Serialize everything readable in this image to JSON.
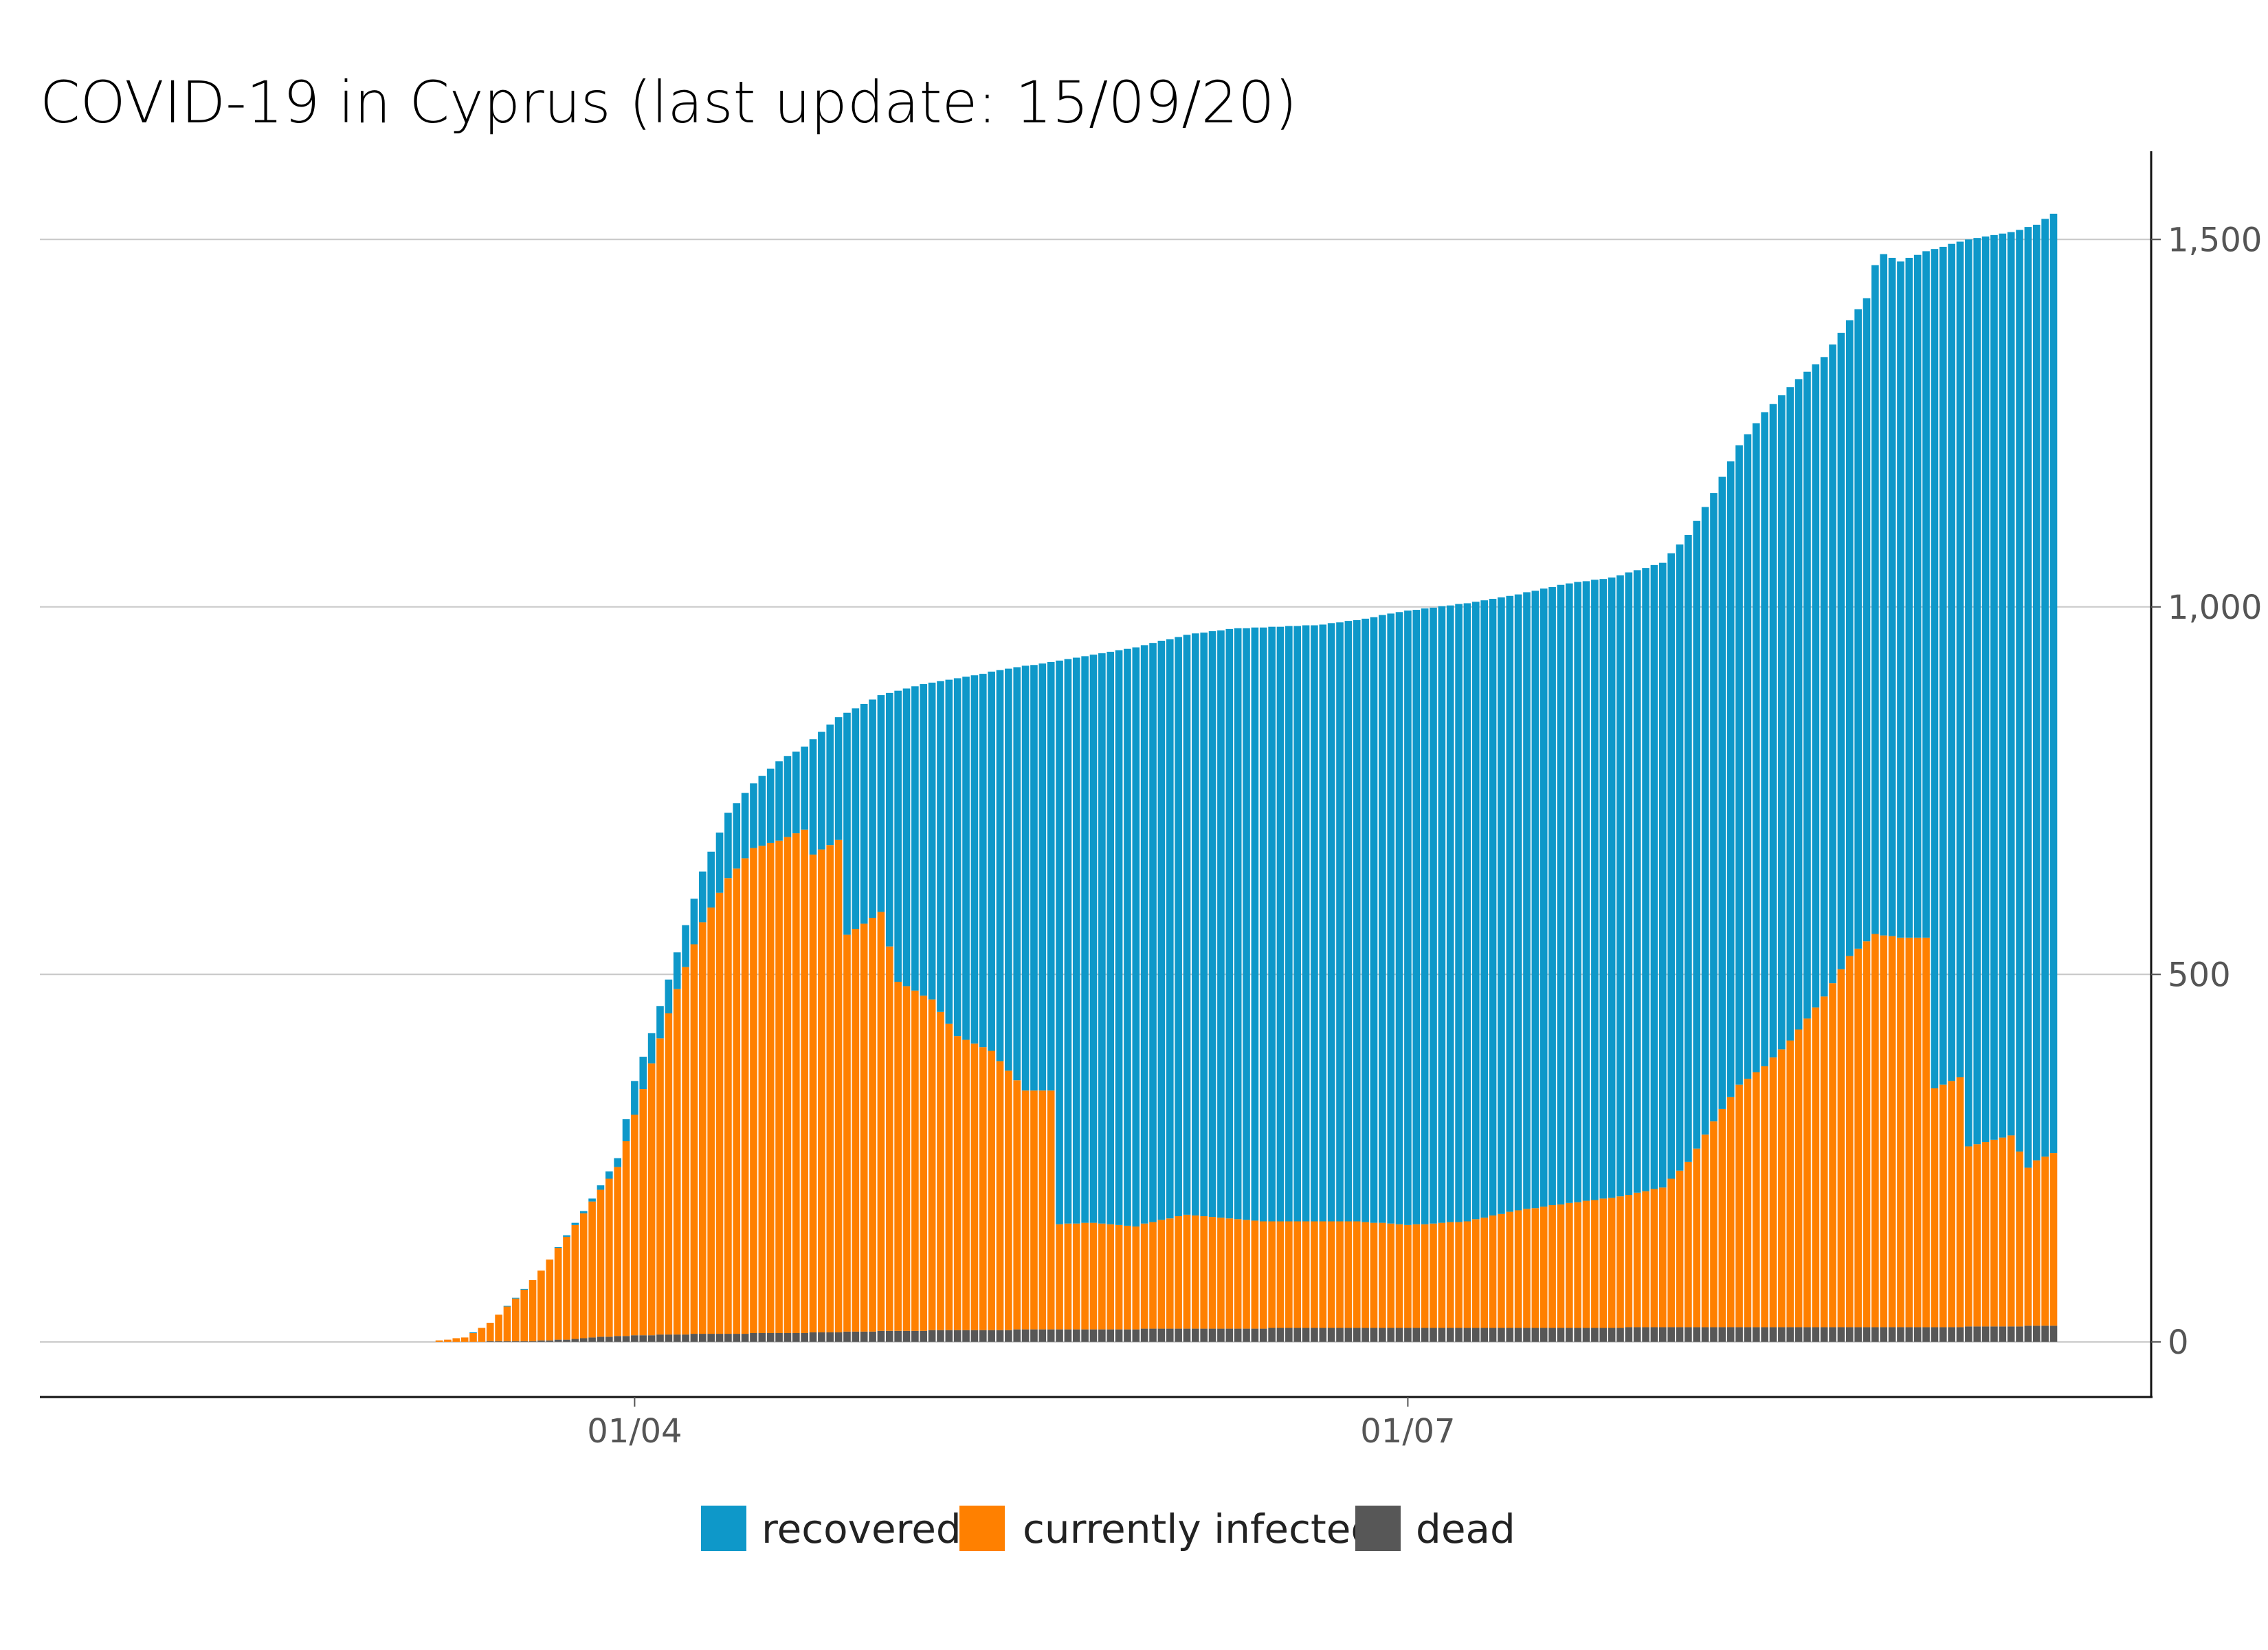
{
  "chart_data": {
    "type": "bar",
    "stacked": true,
    "title": "COVID-19 in Cyprus (last update: 15/09/20)",
    "xlabel": "",
    "ylabel": "",
    "x_start": "2020-01-22",
    "x_end": "2020-09-15",
    "x_tick_labels": [
      {
        "date": "2020-04-01",
        "label": "01/04"
      },
      {
        "date": "2020-07-01",
        "label": "01/07"
      }
    ],
    "y_axis_position": "right",
    "ylim": [
      -75,
      1620
    ],
    "y_ticks": [
      {
        "value": 0,
        "label": "0"
      },
      {
        "value": 500,
        "label": "500"
      },
      {
        "value": 1000,
        "label": "1,000"
      },
      {
        "value": 1500,
        "label": "1,500"
      }
    ],
    "grid": "horizontal",
    "legend_position": "bottom-center",
    "colors": {
      "recovered": "#0e98c9",
      "infected": "#ff8000",
      "dead": "#575757"
    },
    "series": [
      {
        "key": "recovered",
        "name": "recovered"
      },
      {
        "key": "infected",
        "name": "currently infected"
      },
      {
        "key": "dead",
        "name": "dead"
      }
    ],
    "daily_from": "2020-03-09",
    "daily_to": "2020-09-15",
    "anchor_points": {
      "dead": [
        [
          "2020-03-09",
          0
        ],
        [
          "2020-03-20",
          1
        ],
        [
          "2020-03-24",
          3
        ],
        [
          "2020-03-27",
          6
        ],
        [
          "2020-04-01",
          9
        ],
        [
          "2020-04-10",
          11
        ],
        [
          "2020-04-20",
          12
        ],
        [
          "2020-05-01",
          15
        ],
        [
          "2020-05-20",
          17
        ],
        [
          "2020-06-10",
          18
        ],
        [
          "2020-06-20",
          19
        ],
        [
          "2020-09-01",
          20
        ],
        [
          "2020-09-15",
          22
        ]
      ],
      "infected": [
        [
          "2020-03-09",
          2
        ],
        [
          "2020-03-12",
          6
        ],
        [
          "2020-03-15",
          25
        ],
        [
          "2020-03-18",
          58
        ],
        [
          "2020-03-21",
          95
        ],
        [
          "2020-03-24",
          140
        ],
        [
          "2020-03-27",
          185
        ],
        [
          "2020-03-30",
          230
        ],
        [
          "2020-04-01",
          300
        ],
        [
          "2020-04-03",
          370
        ],
        [
          "2020-04-06",
          470
        ],
        [
          "2020-04-09",
          560
        ],
        [
          "2020-04-12",
          620
        ],
        [
          "2020-04-15",
          660
        ],
        [
          "2020-04-18",
          670
        ],
        [
          "2020-04-21",
          685
        ],
        [
          "2020-04-22",
          650
        ],
        [
          "2020-04-25",
          670
        ],
        [
          "2020-04-26",
          540
        ],
        [
          "2020-04-30",
          570
        ],
        [
          "2020-05-02",
          475
        ],
        [
          "2020-05-06",
          450
        ],
        [
          "2020-05-09",
          400
        ],
        [
          "2020-05-13",
          380
        ],
        [
          "2020-05-17",
          325
        ],
        [
          "2020-05-20",
          325
        ],
        [
          "2020-05-21",
          143
        ],
        [
          "2020-05-25",
          145
        ],
        [
          "2020-05-30",
          140
        ],
        [
          "2020-06-05",
          155
        ],
        [
          "2020-06-10",
          150
        ],
        [
          "2020-06-15",
          145
        ],
        [
          "2020-06-25",
          145
        ],
        [
          "2020-07-01",
          140
        ],
        [
          "2020-07-08",
          145
        ],
        [
          "2020-07-14",
          160
        ],
        [
          "2020-07-20",
          170
        ],
        [
          "2020-07-27",
          180
        ],
        [
          "2020-07-31",
          190
        ],
        [
          "2020-08-03",
          225
        ],
        [
          "2020-08-06",
          280
        ],
        [
          "2020-08-09",
          330
        ],
        [
          "2020-08-12",
          355
        ],
        [
          "2020-08-15",
          390
        ],
        [
          "2020-08-19",
          450
        ],
        [
          "2020-08-22",
          505
        ],
        [
          "2020-08-25",
          535
        ],
        [
          "2020-08-28",
          530
        ],
        [
          "2020-08-31",
          530
        ],
        [
          "2020-09-01",
          325
        ],
        [
          "2020-09-04",
          340
        ],
        [
          "2020-09-05",
          245
        ],
        [
          "2020-09-10",
          260
        ],
        [
          "2020-09-12",
          215
        ],
        [
          "2020-09-13",
          225
        ],
        [
          "2020-09-15",
          235
        ]
      ],
      "total": [
        [
          "2020-03-09",
          2
        ],
        [
          "2020-03-12",
          6
        ],
        [
          "2020-03-15",
          26
        ],
        [
          "2020-03-18",
          60
        ],
        [
          "2020-03-21",
          96
        ],
        [
          "2020-03-24",
          145
        ],
        [
          "2020-03-27",
          195
        ],
        [
          "2020-03-30",
          250
        ],
        [
          "2020-04-01",
          355
        ],
        [
          "2020-04-03",
          420
        ],
        [
          "2020-04-06",
          530
        ],
        [
          "2020-04-09",
          640
        ],
        [
          "2020-04-12",
          720
        ],
        [
          "2020-04-15",
          760
        ],
        [
          "2020-04-18",
          790
        ],
        [
          "2020-04-21",
          810
        ],
        [
          "2020-04-25",
          850
        ],
        [
          "2020-04-30",
          880
        ],
        [
          "2020-05-05",
          895
        ],
        [
          "2020-05-10",
          905
        ],
        [
          "2020-05-15",
          916
        ],
        [
          "2020-05-20",
          925
        ],
        [
          "2020-05-25",
          935
        ],
        [
          "2020-05-30",
          945
        ],
        [
          "2020-06-05",
          962
        ],
        [
          "2020-06-10",
          970
        ],
        [
          "2020-06-20",
          975
        ],
        [
          "2020-06-25",
          982
        ],
        [
          "2020-07-01",
          995
        ],
        [
          "2020-07-08",
          1005
        ],
        [
          "2020-07-14",
          1017
        ],
        [
          "2020-07-20",
          1032
        ],
        [
          "2020-07-25",
          1040
        ],
        [
          "2020-07-31",
          1060
        ],
        [
          "2020-08-03",
          1098
        ],
        [
          "2020-08-06",
          1155
        ],
        [
          "2020-08-09",
          1220
        ],
        [
          "2020-08-12",
          1265
        ],
        [
          "2020-08-16",
          1310
        ],
        [
          "2020-08-19",
          1340
        ],
        [
          "2020-08-22",
          1390
        ],
        [
          "2020-08-24",
          1420
        ],
        [
          "2020-08-25",
          1465
        ],
        [
          "2020-08-26",
          1480
        ],
        [
          "2020-08-28",
          1470
        ],
        [
          "2020-08-31",
          1484
        ],
        [
          "2020-09-05",
          1500
        ],
        [
          "2020-09-10",
          1510
        ],
        [
          "2020-09-13",
          1520
        ],
        [
          "2020-09-15",
          1535
        ]
      ]
    }
  }
}
